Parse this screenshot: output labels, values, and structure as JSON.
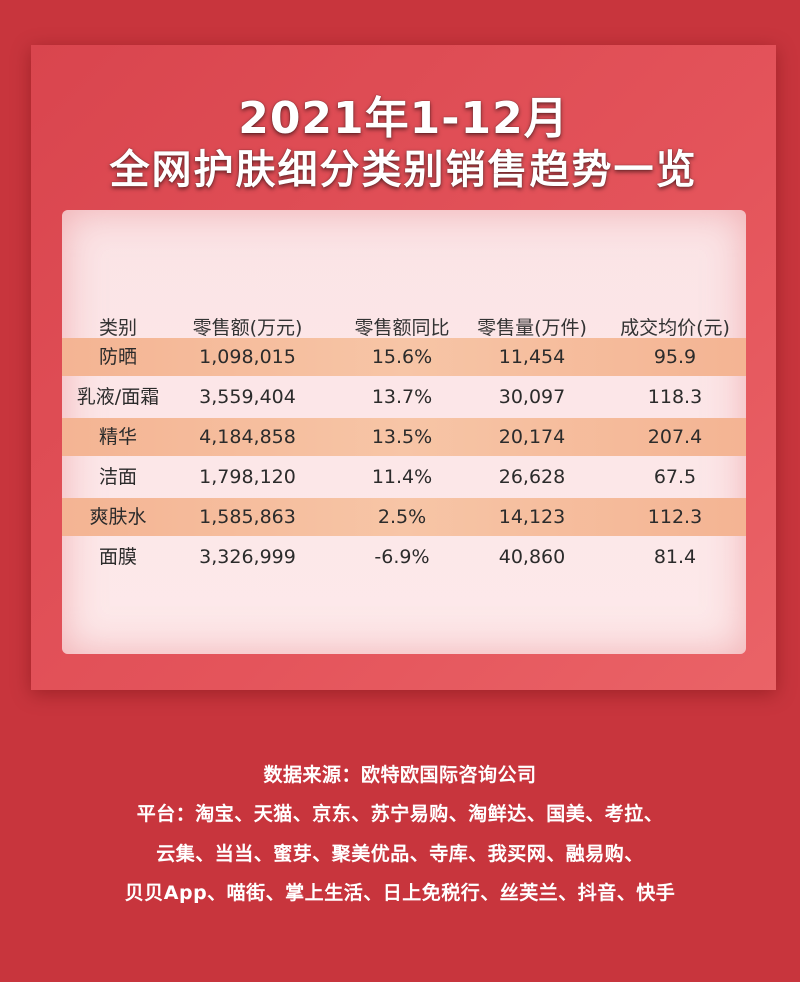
{
  "title": {
    "line1": "2021年1-12月",
    "line2": "全网护肤细分类别销售趋势一览"
  },
  "table": {
    "headers": [
      "类别",
      "零售额(万元)",
      "零售额同比",
      "零售量(万件)",
      "成交均价(元)"
    ],
    "rows": [
      [
        "防晒",
        "1,098,015",
        "15.6%",
        "11,454",
        "95.9"
      ],
      [
        "乳液/面霜",
        "3,559,404",
        "13.7%",
        "30,097",
        "118.3"
      ],
      [
        "精华",
        "4,184,858",
        "13.5%",
        "20,174",
        "207.4"
      ],
      [
        "洁面",
        "1,798,120",
        "11.4%",
        "26,628",
        "67.5"
      ],
      [
        "爽肤水",
        "1,585,863",
        "2.5%",
        "14,123",
        "112.3"
      ],
      [
        "面膜",
        "3,326,999",
        "-6.9%",
        "40,860",
        "81.4"
      ]
    ]
  },
  "footer": {
    "source": "数据来源：欧特欧国际咨询公司",
    "platforms_1": "平台：淘宝、天猫、京东、苏宁易购、淘鲜达、国美、考拉、",
    "platforms_2": "云集、当当、蜜芽、聚美优品、寺库、我买网、融易购、",
    "platforms_3": "贝贝App、喵街、掌上生活、日上免税行、丝芙兰、抖音、快手"
  },
  "colors": {
    "background": "#c8353d",
    "card": "#e4545b",
    "panel": "#fde9ea",
    "highlight_row": "#f7c5a6"
  }
}
